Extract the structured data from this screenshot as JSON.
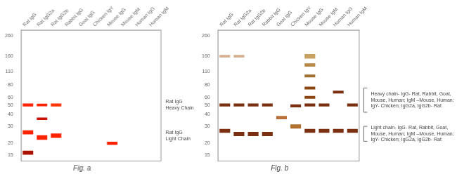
{
  "chart_data": [
    {
      "type": "band",
      "title": "Fig. a",
      "categories": [
        "Rat IgG",
        "Rat IgG2a",
        "Rat IgG2b",
        "Rabbit IgG",
        "Goat IgG",
        "Chicken IgY",
        "Mouse IgG",
        "Mouse IgM",
        "Human IgG",
        "Human IgM"
      ],
      "log": "y",
      "ylim": [
        13,
        300
      ],
      "yticks": [
        15,
        20,
        {
          "value": 25,
          "label": null
        },
        30,
        40,
        50,
        60,
        80,
        110,
        160,
        260
      ],
      "grid": false,
      "bands": [
        {
          "x": "Rat IgG",
          "y": 50,
          "height": 3.5,
          "color": "#ff2200"
        },
        {
          "x": "Rat IgG2a",
          "y": 50,
          "height": 3.0,
          "color": "#ff2200"
        },
        {
          "x": "Rat IgG2b",
          "y": 50,
          "height": 3.5,
          "color": "#ff3300"
        },
        {
          "x": "Rat IgG",
          "y": 26,
          "height": 2.5,
          "color": "#ff2200"
        },
        {
          "x": "Rat IgG2a",
          "y": 23,
          "height": 2.5,
          "color": "#ff2200"
        },
        {
          "x": "Rat IgG2b",
          "y": 24,
          "height": 2.5,
          "color": "#ff2200"
        },
        {
          "x": "Rat IgG",
          "y": 16,
          "height": 1.5,
          "color": "#aa1100"
        },
        {
          "x": "Rat IgG2a",
          "y": 36,
          "height": 2.0,
          "color": "#cc1100"
        },
        {
          "x": "Mouse IgG",
          "y": 20,
          "height": 1.5,
          "color": "#ff2200"
        }
      ],
      "annotations": [
        {
          "text": "Rat IgG\nHeavy Chain",
          "y": 50
        },
        {
          "text": "Rat IgG\nLight Chain",
          "y": 24
        }
      ]
    },
    {
      "type": "band",
      "title": "Fig. b",
      "categories": [
        "Rat IgG",
        "Rat IgG2a",
        "Rat IgG2b",
        "Rabbit IgG",
        "Goat IgG",
        "Chicken IgY",
        "Mouse IgG",
        "Mouse IgM",
        "Human IgG",
        "Human IgM"
      ],
      "log": "y",
      "ylim": [
        13,
        300
      ],
      "yticks": [
        15,
        20,
        {
          "value": 25,
          "label": null
        },
        30,
        40,
        50,
        60,
        80,
        110,
        160,
        260
      ],
      "grid": false,
      "bands": [
        {
          "x": "Rat IgG",
          "y": 50,
          "height": 3.5,
          "color": "#7a3010"
        },
        {
          "x": "Rat IgG2a",
          "y": 50,
          "height": 3.5,
          "color": "#7a3010"
        },
        {
          "x": "Rat IgG2b",
          "y": 50,
          "height": 3.5,
          "color": "#7a3010"
        },
        {
          "x": "Rabbit IgG",
          "y": 50,
          "height": 3.5,
          "color": "#7a3010"
        },
        {
          "x": "Chicken IgY",
          "y": 49,
          "height": 3.5,
          "color": "#7a3010"
        },
        {
          "x": "Mouse IgG",
          "y": 160,
          "height": 18,
          "color": "#c8a060"
        },
        {
          "x": "Mouse IgG",
          "y": 130,
          "height": 10,
          "color": "#b88848"
        },
        {
          "x": "Mouse IgG",
          "y": 100,
          "height": 7,
          "color": "#a07030"
        },
        {
          "x": "Mouse IgG",
          "y": 75,
          "height": 5,
          "color": "#8B4513"
        },
        {
          "x": "Mouse IgG",
          "y": 60,
          "height": 4,
          "color": "#8B4513"
        },
        {
          "x": "Mouse IgG",
          "y": 50,
          "height": 3.5,
          "color": "#7a3010"
        },
        {
          "x": "Mouse IgM",
          "y": 50,
          "height": 3.5,
          "color": "#7a3010"
        },
        {
          "x": "Human IgG",
          "y": 68,
          "height": 4.5,
          "color": "#7a3010"
        },
        {
          "x": "Human IgM",
          "y": 50,
          "height": 3.5,
          "color": "#7a3010"
        },
        {
          "x": "Goat IgG",
          "y": 37,
          "height": 3.0,
          "color": "#b87038"
        },
        {
          "x": "Chicken IgY",
          "y": 30,
          "height": 3.0,
          "color": "#b07030"
        },
        {
          "x": "Rat IgG",
          "y": 27,
          "height": 2.5,
          "color": "#7a3010"
        },
        {
          "x": "Rat IgG2a",
          "y": 25,
          "height": 2.5,
          "color": "#7a3010"
        },
        {
          "x": "Rat IgG2b",
          "y": 25,
          "height": 2.5,
          "color": "#7a3010"
        },
        {
          "x": "Rabbit IgG",
          "y": 25,
          "height": 2.5,
          "color": "#7a3010"
        },
        {
          "x": "Mouse IgG",
          "y": 27,
          "height": 2.5,
          "color": "#7a3010"
        },
        {
          "x": "Mouse IgM",
          "y": 27,
          "height": 2.5,
          "color": "#7a3010"
        },
        {
          "x": "Human IgG",
          "y": 27,
          "height": 2.5,
          "color": "#7a3010"
        },
        {
          "x": "Human IgM",
          "y": 27,
          "height": 2.5,
          "color": "#7a3010"
        },
        {
          "x": "Rat IgG",
          "y": 160,
          "height": 10,
          "color": "#d4b090"
        },
        {
          "x": "Rat IgG2a",
          "y": 160,
          "height": 10,
          "color": "#d4b090"
        }
      ],
      "annotations": [
        {
          "text": "Heavy chain- IgG- Rat, Rabbit, Goat,\nMouse, Human; IgM –Mouse, Human;\nIgY- Chicken; IgG2a, IgG2b- Rat",
          "y_top": 75,
          "y_bottom": 42
        },
        {
          "text": "Light chain- IgG- Rat, Rabbit, Goat,\nMouse, Human; IgM –Mouse, Human;\nIgY- Chicken; IgG2a, IgG2b- Rat",
          "y_top": 30,
          "y_bottom": 21
        }
      ]
    }
  ]
}
